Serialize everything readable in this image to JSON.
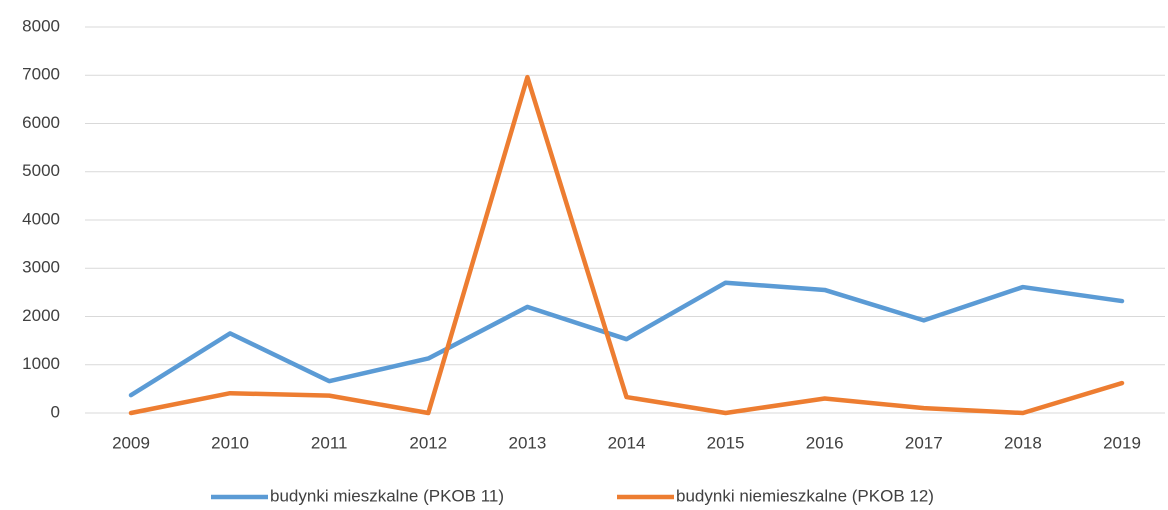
{
  "chart_data": {
    "type": "line",
    "categories": [
      "2009",
      "2010",
      "2011",
      "2012",
      "2013",
      "2014",
      "2015",
      "2016",
      "2017",
      "2018",
      "2019"
    ],
    "series": [
      {
        "name": "budynki mieszkalne (PKOB 11)",
        "color": "#5b9bd5",
        "values": [
          370,
          1650,
          660,
          1130,
          2200,
          1530,
          2700,
          2550,
          1920,
          2610,
          2320
        ]
      },
      {
        "name": "budynki niemieszkalne (PKOB 12)",
        "color": "#ed7d31",
        "values": [
          0,
          410,
          360,
          0,
          6960,
          330,
          0,
          300,
          100,
          0,
          620
        ]
      }
    ],
    "ylim": [
      0,
      8000
    ],
    "yticks": [
      0,
      1000,
      2000,
      3000,
      4000,
      5000,
      6000,
      7000,
      8000
    ],
    "grid": true,
    "legend": "bottom"
  }
}
